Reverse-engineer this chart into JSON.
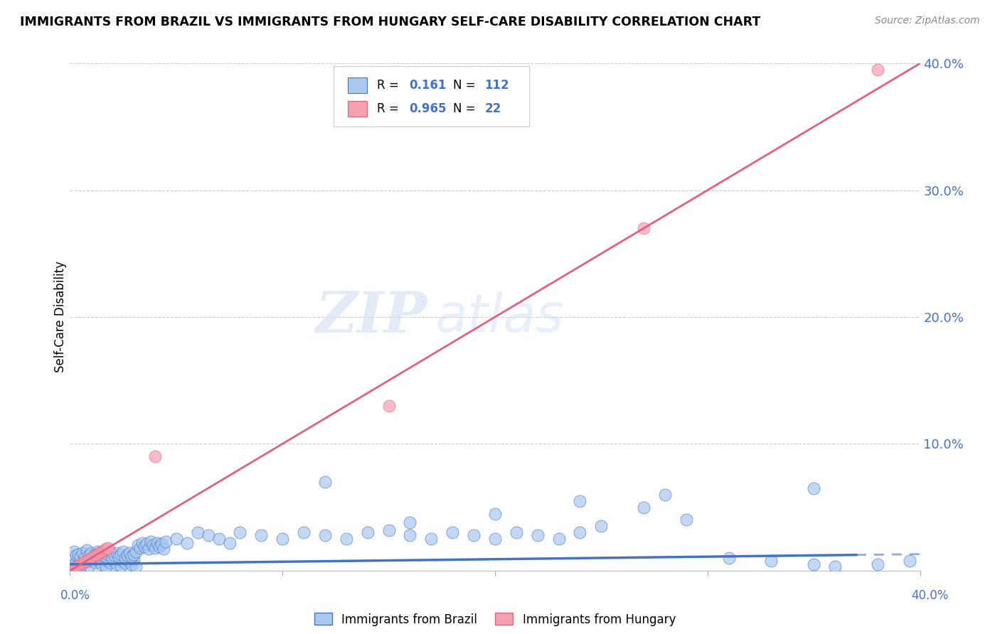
{
  "title": "IMMIGRANTS FROM BRAZIL VS IMMIGRANTS FROM HUNGARY SELF-CARE DISABILITY CORRELATION CHART",
  "source": "Source: ZipAtlas.com",
  "ylabel": "Self-Care Disability",
  "xlim": [
    0.0,
    0.4
  ],
  "ylim": [
    0.0,
    0.4
  ],
  "brazil_R": 0.161,
  "brazil_N": 112,
  "hungary_R": 0.965,
  "hungary_N": 22,
  "brazil_color": "#a8c8f0",
  "hungary_color": "#f4a0b0",
  "brazil_line_color": "#4472c4",
  "hungary_line_color": "#e06080",
  "watermark_zip": "ZIP",
  "watermark_atlas": "atlas",
  "ytick_labels": [
    "",
    "10.0%",
    "20.0%",
    "30.0%",
    "40.0%"
  ],
  "ytick_values": [
    0.0,
    0.1,
    0.2,
    0.3,
    0.4
  ],
  "background_color": "#ffffff",
  "grid_color": "#cccccc",
  "brazil_x": [
    0.002,
    0.003,
    0.004,
    0.005,
    0.006,
    0.007,
    0.008,
    0.009,
    0.01,
    0.011,
    0.012,
    0.013,
    0.014,
    0.015,
    0.016,
    0.017,
    0.018,
    0.019,
    0.02,
    0.021,
    0.022,
    0.023,
    0.024,
    0.025,
    0.026,
    0.027,
    0.028,
    0.029,
    0.03,
    0.031,
    0.002,
    0.003,
    0.004,
    0.005,
    0.006,
    0.007,
    0.008,
    0.009,
    0.01,
    0.011,
    0.012,
    0.013,
    0.014,
    0.015,
    0.016,
    0.017,
    0.018,
    0.019,
    0.02,
    0.021,
    0.022,
    0.023,
    0.024,
    0.025,
    0.026,
    0.027,
    0.028,
    0.029,
    0.03,
    0.031,
    0.032,
    0.033,
    0.034,
    0.035,
    0.036,
    0.037,
    0.038,
    0.039,
    0.04,
    0.041,
    0.042,
    0.043,
    0.044,
    0.045,
    0.05,
    0.055,
    0.06,
    0.065,
    0.07,
    0.075,
    0.08,
    0.09,
    0.1,
    0.11,
    0.12,
    0.13,
    0.14,
    0.15,
    0.16,
    0.17,
    0.18,
    0.19,
    0.2,
    0.21,
    0.22,
    0.23,
    0.24,
    0.25,
    0.27,
    0.29,
    0.31,
    0.33,
    0.35,
    0.36,
    0.38,
    0.395,
    0.35,
    0.28,
    0.24,
    0.2,
    0.16,
    0.12
  ],
  "brazil_y": [
    0.005,
    0.008,
    0.01,
    0.003,
    0.007,
    0.006,
    0.009,
    0.004,
    0.011,
    0.008,
    0.006,
    0.01,
    0.007,
    0.005,
    0.009,
    0.003,
    0.008,
    0.006,
    0.01,
    0.007,
    0.005,
    0.009,
    0.004,
    0.008,
    0.006,
    0.01,
    0.007,
    0.005,
    0.009,
    0.003,
    0.015,
    0.012,
    0.013,
    0.011,
    0.014,
    0.01,
    0.016,
    0.012,
    0.014,
    0.011,
    0.013,
    0.015,
    0.01,
    0.012,
    0.014,
    0.011,
    0.013,
    0.015,
    0.01,
    0.012,
    0.014,
    0.011,
    0.013,
    0.015,
    0.01,
    0.012,
    0.014,
    0.011,
    0.013,
    0.015,
    0.02,
    0.018,
    0.022,
    0.019,
    0.021,
    0.017,
    0.023,
    0.02,
    0.018,
    0.022,
    0.019,
    0.021,
    0.017,
    0.023,
    0.025,
    0.022,
    0.03,
    0.028,
    0.025,
    0.022,
    0.03,
    0.028,
    0.025,
    0.03,
    0.028,
    0.025,
    0.03,
    0.032,
    0.028,
    0.025,
    0.03,
    0.028,
    0.025,
    0.03,
    0.028,
    0.025,
    0.03,
    0.035,
    0.05,
    0.04,
    0.01,
    0.008,
    0.005,
    0.003,
    0.005,
    0.008,
    0.065,
    0.06,
    0.055,
    0.045,
    0.038,
    0.07
  ],
  "hungary_x": [
    0.001,
    0.002,
    0.003,
    0.004,
    0.005,
    0.006,
    0.007,
    0.008,
    0.009,
    0.01,
    0.011,
    0.012,
    0.013,
    0.014,
    0.015,
    0.016,
    0.017,
    0.018,
    0.04,
    0.15,
    0.27,
    0.38
  ],
  "hungary_y": [
    0.001,
    0.002,
    0.003,
    0.004,
    0.005,
    0.006,
    0.007,
    0.008,
    0.009,
    0.01,
    0.011,
    0.012,
    0.013,
    0.014,
    0.015,
    0.016,
    0.017,
    0.018,
    0.09,
    0.13,
    0.27,
    0.395
  ]
}
